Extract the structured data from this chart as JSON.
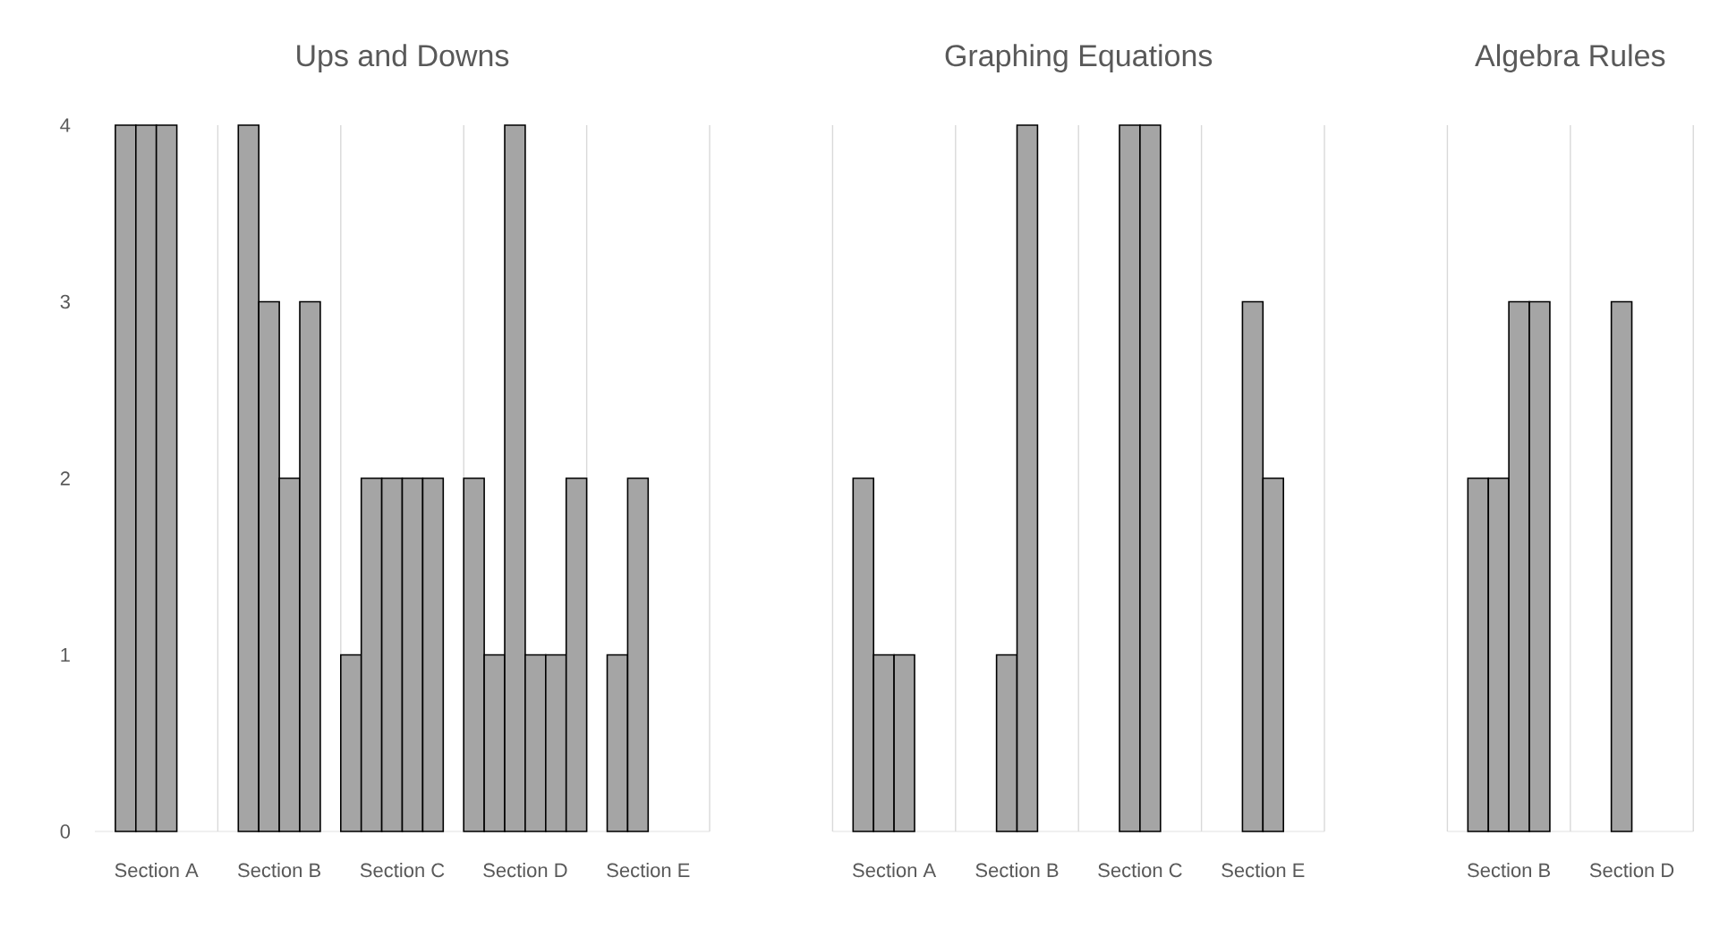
{
  "chart_data": [
    {
      "type": "bar",
      "title": "Ups and Downs",
      "categories": [
        "Section A",
        "Section B",
        "Section C",
        "Section D",
        "Section E"
      ],
      "ylim": [
        0,
        4
      ],
      "yticks": [
        0,
        1,
        2,
        3,
        4
      ],
      "grid": "x",
      "series": [
        {
          "color": "#a5a5a5",
          "values": [
            null,
            null,
            1,
            2,
            null
          ]
        },
        {
          "color": "#a5a5a5",
          "values": [
            4,
            4,
            2,
            1,
            1
          ]
        },
        {
          "color": "#a5a5a5",
          "values": [
            4,
            3,
            2,
            4,
            2
          ]
        },
        {
          "color": "#a5a5a5",
          "values": [
            4,
            2,
            2,
            1,
            null
          ]
        },
        {
          "color": "#a5a5a5",
          "values": [
            null,
            3,
            2,
            1,
            null
          ]
        },
        {
          "color": "#a5a5a5",
          "values": [
            null,
            null,
            null,
            2,
            null
          ]
        }
      ]
    },
    {
      "type": "bar",
      "title": "Graphing Equations",
      "categories": [
        "Section A",
        "Section B",
        "Section C",
        "Section E"
      ],
      "ylim": [
        0,
        4
      ],
      "yticks": [
        0,
        1,
        2,
        3,
        4
      ],
      "grid": "x",
      "tick_labels": "x",
      "series": [
        {
          "color": "#a5a5a5",
          "values": [
            null,
            null,
            null,
            null
          ]
        },
        {
          "color": "#a5a5a5",
          "values": [
            2,
            null,
            null,
            null
          ]
        },
        {
          "color": "#a5a5a5",
          "values": [
            1,
            1,
            4,
            3
          ]
        },
        {
          "color": "#a5a5a5",
          "values": [
            1,
            4,
            4,
            2
          ]
        },
        {
          "color": "#a5a5a5",
          "values": [
            null,
            null,
            null,
            null
          ]
        },
        {
          "color": "#a5a5a5",
          "values": [
            null,
            null,
            null,
            null
          ]
        }
      ]
    },
    {
      "type": "bar",
      "title": "Algebra Rules",
      "categories": [
        "Section B",
        "Section D"
      ],
      "ylim": [
        0,
        4
      ],
      "yticks": [
        0,
        1,
        2,
        3,
        4
      ],
      "grid": "x",
      "tick_labels": "x",
      "series": [
        {
          "color": "#a5a5a5",
          "values": [
            null,
            null
          ]
        },
        {
          "color": "#a5a5a5",
          "values": [
            2,
            null
          ]
        },
        {
          "color": "#a5a5a5",
          "values": [
            2,
            3
          ]
        },
        {
          "color": "#a5a5a5",
          "values": [
            3,
            null
          ]
        },
        {
          "color": "#a5a5a5",
          "values": [
            3,
            null
          ]
        },
        {
          "color": "#a5a5a5",
          "values": [
            null,
            null
          ]
        }
      ]
    }
  ]
}
